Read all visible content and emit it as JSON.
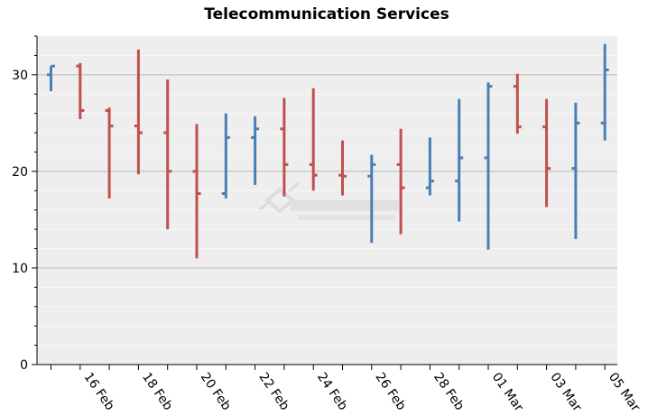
{
  "chart_data": {
    "type": "ohlc",
    "title": "Telecommunication Services",
    "xlabel": "",
    "ylabel": "",
    "ylim": [
      0,
      34
    ],
    "y_ticks": [
      "0",
      "10",
      "20",
      "30"
    ],
    "x_tick_labels": [
      "16 Feb",
      "18 Feb",
      "20 Feb",
      "22 Feb",
      "24 Feb",
      "26 Feb",
      "28 Feb",
      "01 Mar",
      "03 Mar",
      "05 Mar"
    ],
    "grid": true,
    "legend": "none",
    "colors": {
      "up": "#4a7fb5",
      "down": "#c0504d",
      "plot_bg": "#eeeeee",
      "grid": "#b8b8b8"
    },
    "points": [
      {
        "date": "14 Feb",
        "open": 30.0,
        "high": 30.9,
        "low": 28.3,
        "close": 30.9
      },
      {
        "date": "15 Feb",
        "open": 30.9,
        "high": 31.2,
        "low": 25.4,
        "close": 26.3
      },
      {
        "date": "16 Feb",
        "open": 26.3,
        "high": 26.6,
        "low": 17.2,
        "close": 24.7
      },
      {
        "date": "17 Feb",
        "open": 24.7,
        "high": 32.6,
        "low": 19.7,
        "close": 24.0
      },
      {
        "date": "18 Feb",
        "open": 24.0,
        "high": 29.5,
        "low": 14.0,
        "close": 20.0
      },
      {
        "date": "19 Feb",
        "open": 20.0,
        "high": 24.9,
        "low": 11.0,
        "close": 17.7
      },
      {
        "date": "20 Feb",
        "open": 17.7,
        "high": 26.0,
        "low": 17.2,
        "close": 23.5
      },
      {
        "date": "21 Feb",
        "open": 23.5,
        "high": 25.7,
        "low": 18.6,
        "close": 24.4
      },
      {
        "date": "22 Feb",
        "open": 24.4,
        "high": 27.6,
        "low": 17.4,
        "close": 20.7
      },
      {
        "date": "23 Feb",
        "open": 20.7,
        "high": 28.6,
        "low": 18.0,
        "close": 19.6
      },
      {
        "date": "24 Feb",
        "open": 19.6,
        "high": 23.2,
        "low": 17.5,
        "close": 19.5
      },
      {
        "date": "25 Feb",
        "open": 19.5,
        "high": 21.7,
        "low": 12.6,
        "close": 20.7
      },
      {
        "date": "26 Feb",
        "open": 20.7,
        "high": 24.4,
        "low": 13.5,
        "close": 18.3
      },
      {
        "date": "27 Feb",
        "open": 18.3,
        "high": 23.5,
        "low": 17.5,
        "close": 19.0
      },
      {
        "date": "28 Feb",
        "open": 19.0,
        "high": 27.5,
        "low": 14.8,
        "close": 21.4
      },
      {
        "date": "01 Mar",
        "open": 21.4,
        "high": 29.2,
        "low": 11.9,
        "close": 28.8
      },
      {
        "date": "02 Mar",
        "open": 28.8,
        "high": 30.1,
        "low": 23.9,
        "close": 24.6
      },
      {
        "date": "03 Mar",
        "open": 24.6,
        "high": 27.5,
        "low": 16.3,
        "close": 20.3
      },
      {
        "date": "04 Mar",
        "open": 20.3,
        "high": 27.1,
        "low": 13.0,
        "close": 25.0
      },
      {
        "date": "05 Mar",
        "open": 25.0,
        "high": 33.2,
        "low": 23.2,
        "close": 30.5
      }
    ]
  },
  "watermark": {
    "brand": "慧都控件网",
    "url": "WWW.EVGET.COM"
  }
}
